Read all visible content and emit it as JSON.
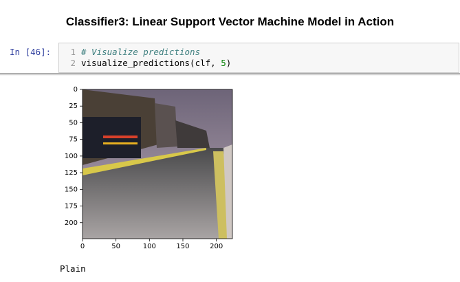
{
  "title": "Classifier3: Linear Support Vector Machine Model in Action",
  "cell": {
    "prompt": "In [46]:",
    "lines": [
      {
        "number": "1",
        "tokens": [
          "# Visualize predictions"
        ]
      },
      {
        "number": "2",
        "tokens": [
          "visualize_predictions(clf, ",
          "5",
          ")"
        ]
      }
    ]
  },
  "output": {
    "plot": {
      "xlim": [
        0,
        224
      ],
      "ylim": [
        0,
        224
      ],
      "xticks": [
        0,
        50,
        100,
        150,
        200
      ],
      "yticks": [
        0,
        25,
        50,
        75,
        100,
        125,
        150,
        175,
        200
      ]
    },
    "text": "Plain"
  }
}
